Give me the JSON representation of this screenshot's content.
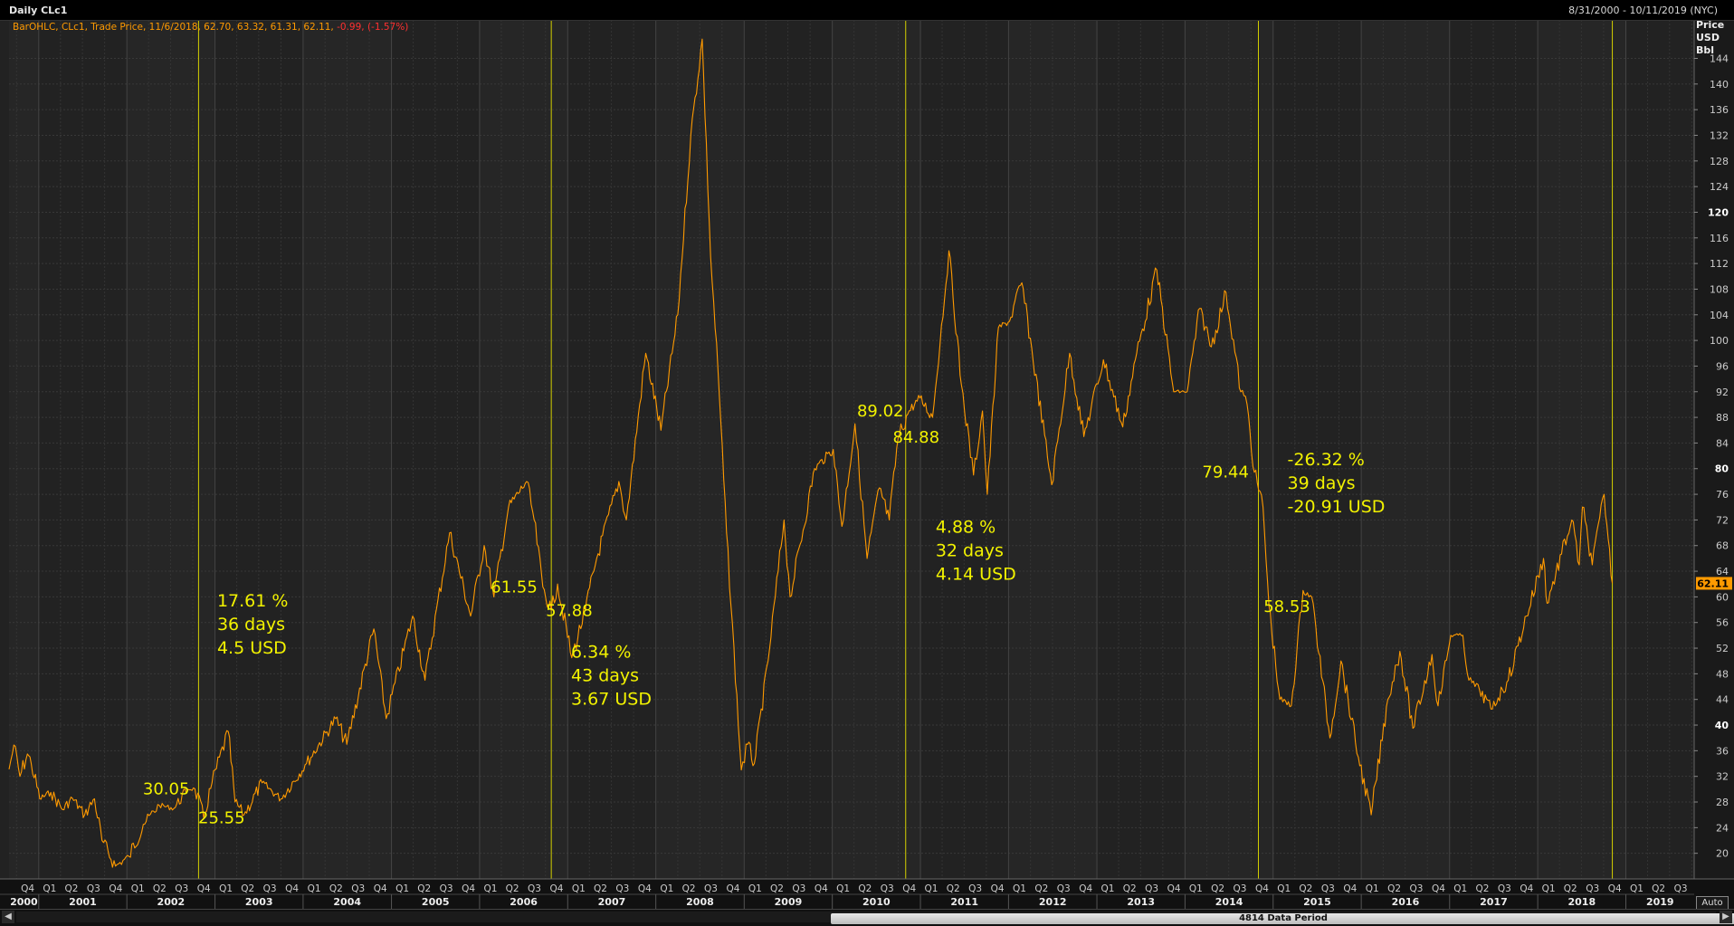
{
  "window": {
    "title": "Daily CLc1",
    "date_range": "8/31/2000 - 10/11/2019 (NYC)",
    "legend_main": "BarOHLC, CLc1, Trade Price,  11/6/2018, 62.70, 63.32, 61.31, 62.11,",
    "legend_change": " -0.99, (-1.57%)"
  },
  "axis": {
    "unit_lines": [
      "Price",
      "USD",
      "Bbl"
    ],
    "last_price_tag": "62.11",
    "auto_label": "Auto",
    "data_period_label": "4814 Data Period"
  },
  "colors": {
    "background": "#222222",
    "series": "#ff9a00",
    "vline": "#d4d000",
    "annotation": "#f2f200",
    "legend_text": "#ff9a00",
    "legend_change": "#ff3030",
    "price_tag": "#ff9a00"
  },
  "chart_data": {
    "type": "line",
    "series": [
      {
        "name": "CLc1",
        "points": [
          [
            "2000-08-31",
            33.1
          ],
          [
            "2000-09-20",
            36.9
          ],
          [
            "2000-10-15",
            32.0
          ],
          [
            "2000-11-15",
            35.5
          ],
          [
            "2000-12-01",
            34.0
          ],
          [
            "2001-01-05",
            28.5
          ],
          [
            "2001-02-20",
            29.5
          ],
          [
            "2001-04-10",
            26.8
          ],
          [
            "2001-05-20",
            28.6
          ],
          [
            "2001-07-10",
            26.0
          ],
          [
            "2001-08-20",
            28.5
          ],
          [
            "2001-09-20",
            22.0
          ],
          [
            "2001-11-15",
            18.0
          ],
          [
            "2002-01-10",
            19.5
          ],
          [
            "2002-03-10",
            24.5
          ],
          [
            "2002-05-15",
            27.5
          ],
          [
            "2002-07-15",
            27.0
          ],
          [
            "2002-09-10",
            30.0
          ],
          [
            "2002-10-10",
            30.05
          ],
          [
            "2002-11-15",
            25.55
          ],
          [
            "2002-12-20",
            31.0
          ],
          [
            "2003-02-25",
            39.0
          ],
          [
            "2003-03-25",
            28.0
          ],
          [
            "2003-05-01",
            26.0
          ],
          [
            "2003-07-15",
            31.0
          ],
          [
            "2003-10-01",
            28.5
          ],
          [
            "2004-01-15",
            34.0
          ],
          [
            "2004-05-15",
            41.0
          ],
          [
            "2004-06-30",
            37.0
          ],
          [
            "2004-10-20",
            55.0
          ],
          [
            "2004-12-10",
            41.0
          ],
          [
            "2005-03-30",
            57.0
          ],
          [
            "2005-05-20",
            47.0
          ],
          [
            "2005-08-30",
            70.0
          ],
          [
            "2005-11-25",
            57.0
          ],
          [
            "2006-01-20",
            68.0
          ],
          [
            "2006-03-01",
            60.0
          ],
          [
            "2006-05-01",
            74.0
          ],
          [
            "2006-07-15",
            78.0
          ],
          [
            "2006-08-15",
            72.0
          ],
          [
            "2006-09-20",
            61.55
          ],
          [
            "2006-10-25",
            57.88
          ],
          [
            "2006-11-20",
            62.0
          ],
          [
            "2007-01-18",
            50.5
          ],
          [
            "2007-03-15",
            58.0
          ],
          [
            "2007-05-01",
            66.0
          ],
          [
            "2007-08-01",
            78.0
          ],
          [
            "2007-09-01",
            72.0
          ],
          [
            "2007-11-20",
            98.0
          ],
          [
            "2008-01-22",
            86.0
          ],
          [
            "2008-04-01",
            104.0
          ],
          [
            "2008-05-25",
            132.0
          ],
          [
            "2008-07-11",
            147.0
          ],
          [
            "2008-08-15",
            113.0
          ],
          [
            "2008-09-15",
            95.0
          ],
          [
            "2008-10-20",
            70.0
          ],
          [
            "2008-12-20",
            33.0
          ],
          [
            "2009-01-15",
            37.0
          ],
          [
            "2009-02-12",
            34.0
          ],
          [
            "2009-04-10",
            50.0
          ],
          [
            "2009-06-15",
            72.0
          ],
          [
            "2009-07-10",
            60.0
          ],
          [
            "2009-10-20",
            80.0
          ],
          [
            "2010-01-05",
            83.0
          ],
          [
            "2010-02-10",
            71.0
          ],
          [
            "2010-04-05",
            87.0
          ],
          [
            "2010-05-25",
            66.0
          ],
          [
            "2010-07-15",
            77.0
          ],
          [
            "2010-08-25",
            72.0
          ],
          [
            "2010-10-01",
            84.88
          ],
          [
            "2010-11-15",
            89.02
          ],
          [
            "2010-12-30",
            91.0
          ],
          [
            "2011-02-20",
            88.0
          ],
          [
            "2011-04-29",
            114.0
          ],
          [
            "2011-06-20",
            93.0
          ],
          [
            "2011-08-09",
            79.0
          ],
          [
            "2011-09-15",
            89.0
          ],
          [
            "2011-10-05",
            76.0
          ],
          [
            "2011-11-20",
            102.0
          ],
          [
            "2012-01-05",
            103.0
          ],
          [
            "2012-02-25",
            109.0
          ],
          [
            "2012-06-28",
            77.5
          ],
          [
            "2012-09-10",
            98.0
          ],
          [
            "2012-11-08",
            85.0
          ],
          [
            "2013-01-28",
            97.0
          ],
          [
            "2013-04-18",
            86.5
          ],
          [
            "2013-06-15",
            98.0
          ],
          [
            "2013-09-06",
            111.0
          ],
          [
            "2013-11-15",
            92.0
          ],
          [
            "2014-01-10",
            92.0
          ],
          [
            "2014-03-03",
            105.0
          ],
          [
            "2014-04-20",
            99.0
          ],
          [
            "2014-06-20",
            107.5
          ],
          [
            "2014-08-20",
            92.0
          ],
          [
            "2014-09-15",
            90.0
          ],
          [
            "2014-10-15",
            79.44
          ],
          [
            "2014-11-20",
            74.0
          ],
          [
            "2014-12-15",
            58.53
          ],
          [
            "2015-01-29",
            44.0
          ],
          [
            "2015-03-17",
            43.0
          ],
          [
            "2015-05-05",
            61.0
          ],
          [
            "2015-06-10",
            60.0
          ],
          [
            "2015-08-24",
            38.0
          ],
          [
            "2015-10-09",
            50.0
          ],
          [
            "2015-12-20",
            35.0
          ],
          [
            "2016-02-11",
            26.0
          ],
          [
            "2016-04-20",
            44.0
          ],
          [
            "2016-06-09",
            51.5
          ],
          [
            "2016-08-02",
            39.5
          ],
          [
            "2016-10-20",
            51.0
          ],
          [
            "2016-11-14",
            43.0
          ],
          [
            "2017-01-06",
            54.0
          ],
          [
            "2017-02-25",
            54.0
          ],
          [
            "2017-03-22",
            47.0
          ],
          [
            "2017-05-05",
            45.5
          ],
          [
            "2017-06-21",
            42.5
          ],
          [
            "2017-09-01",
            47.0
          ],
          [
            "2017-11-15",
            57.0
          ],
          [
            "2018-01-25",
            66.0
          ],
          [
            "2018-02-09",
            59.0
          ],
          [
            "2018-05-22",
            72.0
          ],
          [
            "2018-06-22",
            65.0
          ],
          [
            "2018-07-05",
            74.0
          ],
          [
            "2018-08-15",
            65.0
          ],
          [
            "2018-10-03",
            76.0
          ],
          [
            "2018-11-06",
            62.11
          ]
        ]
      }
    ],
    "xlim": [
      "2000-08-31",
      "2019-10-11"
    ],
    "ylim": [
      16,
      150
    ],
    "y_ticks": [
      20,
      24,
      28,
      32,
      36,
      40,
      44,
      48,
      52,
      56,
      60,
      64,
      68,
      72,
      76,
      80,
      84,
      88,
      92,
      96,
      100,
      104,
      108,
      112,
      116,
      120,
      124,
      128,
      132,
      136,
      140,
      144
    ],
    "y_ticks_bold": [
      40,
      80,
      120
    ],
    "grid": true,
    "x_quarter_labels": [
      "Q1",
      "Q2",
      "Q3",
      "Q4"
    ],
    "x_years": [
      "2000",
      "2001",
      "2002",
      "2003",
      "2004",
      "2005",
      "2006",
      "2007",
      "2008",
      "2009",
      "2010",
      "2011",
      "2012",
      "2013",
      "2014",
      "2015",
      "2016",
      "2017",
      "2018",
      "2019"
    ],
    "vertical_lines": [
      "2002-10-25",
      "2006-10-25",
      "2010-11-01",
      "2014-11-01",
      "2018-11-06"
    ],
    "annotations": [
      {
        "text": "30.05",
        "x": "2002-10-10",
        "y": 30.05
      },
      {
        "text": "25.55",
        "x": "2002-11-15",
        "y": 25.55
      },
      {
        "text": "61.55",
        "x": "2006-09-20",
        "y": 61.55
      },
      {
        "text": "57.88",
        "x": "2006-10-25",
        "y": 57.88
      },
      {
        "text": "89.02",
        "x": "2010-11-15",
        "y": 89.02
      },
      {
        "text": "84.88",
        "x": "2010-10-01",
        "y": 84.88
      },
      {
        "text": "79.44",
        "x": "2014-10-15",
        "y": 79.44
      },
      {
        "text": "58.53",
        "x": "2014-12-15",
        "y": 58.53
      }
    ],
    "stat_blocks": [
      {
        "lines": [
          "17.61 %",
          "36 days",
          "4.5 USD"
        ],
        "x": "2003-01-10",
        "y": 58.5
      },
      {
        "lines": [
          "6.34 %",
          "43 days",
          "3.67 USD"
        ],
        "x": "2007-01-15",
        "y": 50.5
      },
      {
        "lines": [
          "4.88 %",
          "32 days",
          "4.14 USD"
        ],
        "x": "2011-03-05",
        "y": 70.0
      },
      {
        "lines": [
          "-26.32 %",
          "39 days",
          "-20.91 USD"
        ],
        "x": "2015-03-01",
        "y": 80.5
      }
    ]
  }
}
